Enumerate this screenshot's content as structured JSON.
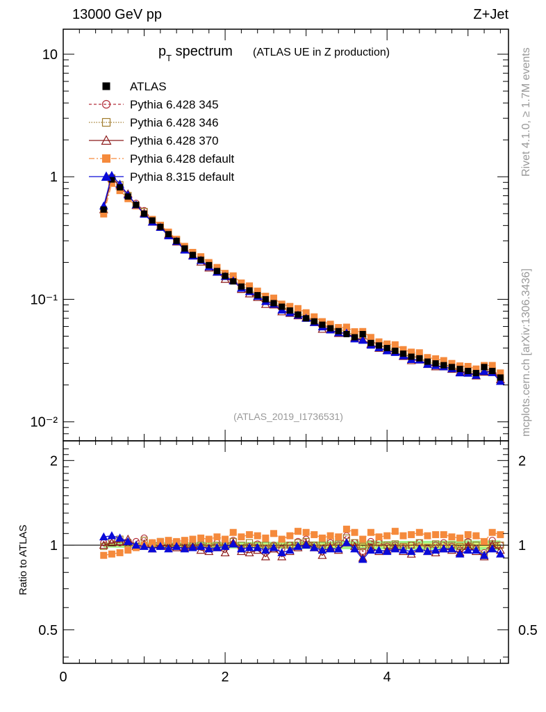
{
  "header": {
    "left": "13000 GeV pp",
    "right": "Z+Jet",
    "side_top": "Rivet 4.1.0, ≥ 1.7M events",
    "side_bottom": "mcplots.cern.ch [arXiv:1306.3436]",
    "analysis_id": "(ATLAS_2019_I1736531)"
  },
  "chart_data": {
    "type": "scatter",
    "title": {
      "main": "p",
      "sub": "T",
      "rest": " spectrum",
      "qualifier": "(ATLAS UE in Z production)"
    },
    "xlabel": "",
    "ylabel": "",
    "xlim": [
      0,
      5.5
    ],
    "ylim": [
      0.007,
      16
    ],
    "y_scale": "log",
    "x_ticks": [
      "0",
      "2",
      "4"
    ],
    "y_tick_labels": [
      "10",
      "1",
      "10⁻¹",
      "10⁻²"
    ],
    "x": [
      0.5,
      0.6,
      0.7,
      0.8,
      0.9,
      1.0,
      1.1,
      1.2,
      1.3,
      1.4,
      1.5,
      1.6,
      1.7,
      1.8,
      1.9,
      2.0,
      2.1,
      2.2,
      2.3,
      2.4,
      2.5,
      2.6,
      2.7,
      2.8,
      2.9,
      3.0,
      3.1,
      3.2,
      3.3,
      3.4,
      3.5,
      3.6,
      3.7,
      3.8,
      3.9,
      4.0,
      4.1,
      4.2,
      4.3,
      4.4,
      4.5,
      4.6,
      4.7,
      4.8,
      4.9,
      5.0,
      5.1,
      5.2,
      5.3,
      5.4
    ],
    "atlas": [
      0.54,
      0.95,
      0.82,
      0.69,
      0.59,
      0.5,
      0.44,
      0.39,
      0.34,
      0.3,
      0.26,
      0.23,
      0.21,
      0.19,
      0.17,
      0.155,
      0.14,
      0.127,
      0.118,
      0.108,
      0.1,
      0.093,
      0.087,
      0.081,
      0.075,
      0.07,
      0.066,
      0.062,
      0.058,
      0.055,
      0.052,
      0.049,
      0.052,
      0.044,
      0.042,
      0.04,
      0.038,
      0.036,
      0.034,
      0.033,
      0.031,
      0.03,
      0.029,
      0.028,
      0.027,
      0.026,
      0.025,
      0.028,
      0.026,
      0.023
    ],
    "legend": [
      {
        "label": "ATLAS",
        "color": "#000000",
        "marker": "square"
      },
      {
        "label": "Pythia 6.428 345",
        "color": "#b32e3a",
        "marker": "circle-open",
        "dash": "4,3"
      },
      {
        "label": "Pythia 6.428 346",
        "color": "#a07a2a",
        "marker": "square-open",
        "dash": "1.5,2"
      },
      {
        "label": "Pythia 6.428 370",
        "color": "#8b1a1a",
        "marker": "triangle-open",
        "dash": ""
      },
      {
        "label": "Pythia 6.428 default",
        "color": "#f58a3c",
        "marker": "square-filled",
        "dash": "8,3,2,3"
      },
      {
        "label": "Pythia 8.315 default",
        "color": "#0a0ad8",
        "marker": "triangle-filled",
        "dash": ""
      }
    ],
    "series": [
      {
        "name": "Pythia 6.428 345",
        "ratio": [
          1.02,
          1.04,
          1.02,
          1.0,
          1.03,
          1.06,
          1.02,
          0.99,
          1.02,
          1.0,
          1.01,
          1.0,
          0.99,
          0.98,
          1.02,
          1.0,
          1.04,
          0.97,
          0.99,
          1.01,
          0.97,
          1.0,
          0.97,
          1.0,
          1.03,
          1.05,
          1.0,
          0.97,
          1.02,
          1.0,
          1.08,
          1.02,
          0.95,
          1.03,
          1.02,
          0.99,
          1.0,
          0.98,
          1.0,
          1.02,
          0.97,
          1.0,
          1.02,
          0.99,
          0.96,
          1.03,
          0.97,
          0.94,
          1.04,
          1.0
        ]
      },
      {
        "name": "Pythia 6.428 346",
        "ratio": [
          0.99,
          1.03,
          1.05,
          1.02,
          0.99,
          1.04,
          1.01,
          1.03,
          1.02,
          1.02,
          1.0,
          1.01,
          1.0,
          1.02,
          1.0,
          1.01,
          1.03,
          1.0,
          1.02,
          1.0,
          1.0,
          0.99,
          1.01,
          1.0,
          1.02,
          1.03,
          1.0,
          1.0,
          1.03,
          1.01,
          1.06,
          1.02,
          0.99,
          1.01,
          1.02,
          1.0,
          1.01,
          0.99,
          1.0,
          1.02,
          0.98,
          1.01,
          1.0,
          1.0,
          0.99,
          1.02,
          1.0,
          0.92,
          1.01,
          1.0
        ]
      },
      {
        "name": "Pythia 6.428 370",
        "ratio": [
          1.0,
          1.02,
          1.03,
          1.05,
          0.99,
          1.01,
          0.97,
          1.0,
          0.99,
          0.98,
          0.98,
          0.99,
          0.96,
          0.95,
          0.98,
          0.94,
          1.02,
          0.95,
          0.94,
          0.96,
          0.91,
          0.97,
          0.91,
          0.95,
          0.98,
          1.01,
          0.98,
          0.92,
          0.98,
          0.96,
          1.02,
          0.99,
          0.9,
          0.98,
          0.95,
          0.96,
          0.98,
          0.95,
          0.93,
          0.97,
          0.95,
          0.94,
          0.97,
          0.96,
          0.94,
          0.99,
          0.95,
          0.91,
          1.0,
          0.96
        ]
      },
      {
        "name": "Pythia 6.428 default",
        "ratio": [
          0.92,
          0.93,
          0.94,
          0.96,
          0.98,
          1.0,
          1.02,
          1.03,
          1.04,
          1.03,
          1.04,
          1.05,
          1.06,
          1.05,
          1.07,
          1.05,
          1.11,
          1.07,
          1.09,
          1.08,
          1.06,
          1.1,
          1.05,
          1.08,
          1.12,
          1.11,
          1.09,
          1.06,
          1.08,
          1.07,
          1.14,
          1.11,
          1.05,
          1.11,
          1.07,
          1.08,
          1.12,
          1.08,
          1.09,
          1.11,
          1.08,
          1.09,
          1.09,
          1.07,
          1.06,
          1.09,
          1.08,
          1.03,
          1.11,
          1.09
        ]
      },
      {
        "name": "Pythia 8.315 default",
        "ratio": [
          1.07,
          1.08,
          1.06,
          1.03,
          1.0,
          0.99,
          0.97,
          0.99,
          0.97,
          0.99,
          0.97,
          0.98,
          0.99,
          0.97,
          0.98,
          0.99,
          1.01,
          0.97,
          0.98,
          0.98,
          0.96,
          0.98,
          0.94,
          0.96,
          0.99,
          1.0,
          0.98,
          0.96,
          0.97,
          0.97,
          1.02,
          0.97,
          0.89,
          0.96,
          0.96,
          0.95,
          0.97,
          0.96,
          0.95,
          0.97,
          0.95,
          0.96,
          0.97,
          0.97,
          0.93,
          0.96,
          0.96,
          0.92,
          0.97,
          0.93
        ]
      }
    ],
    "ratio_panel": {
      "ylabel": "Ratio to ATLAS",
      "ylim": [
        0.38,
        2.35
      ],
      "y_scale": "log",
      "y_ticks": [
        "0.5",
        "1",
        "2"
      ],
      "band_color": "#9ef58a",
      "band_color_inner": "#f3f06a"
    }
  }
}
